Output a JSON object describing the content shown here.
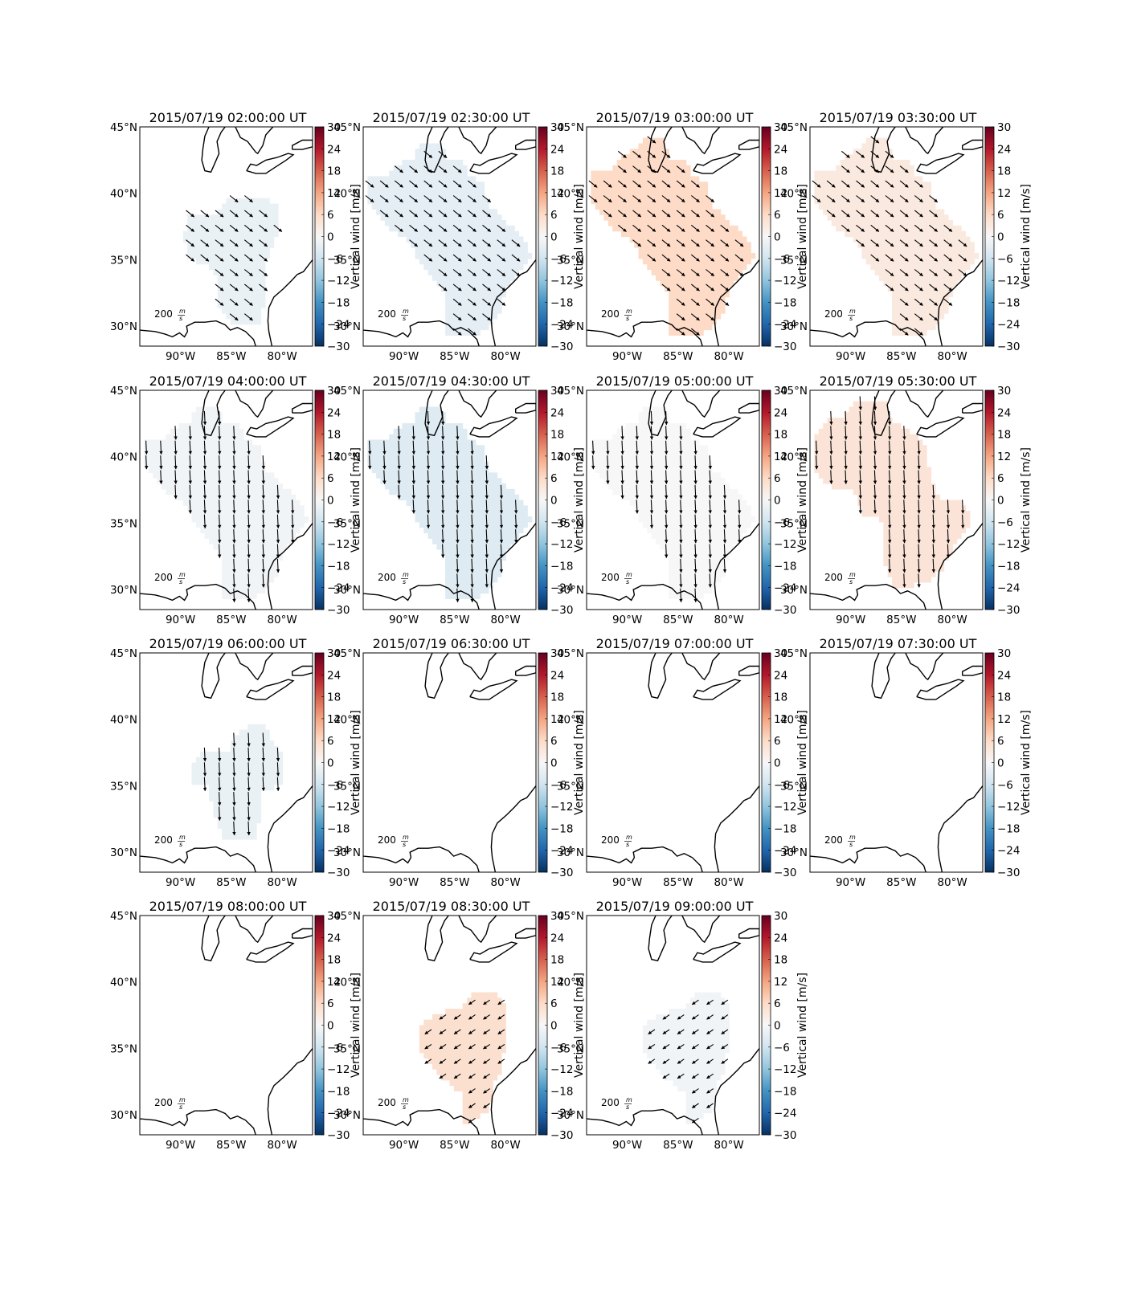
{
  "figure": {
    "colorbar_label": "Vertical wind [m/s]"
  },
  "chart_data": {
    "type": "map",
    "panel_titles": [
      "2015/07/19 02:00:00 UT",
      "2015/07/19 02:30:00 UT",
      "2015/07/19 03:00:00 UT",
      "2015/07/19 03:30:00 UT",
      "2015/07/19 04:00:00 UT",
      "2015/07/19 04:30:00 UT",
      "2015/07/19 05:00:00 UT",
      "2015/07/19 05:30:00 UT",
      "2015/07/19 06:00:00 UT",
      "2015/07/19 06:30:00 UT",
      "2015/07/19 07:00:00 UT",
      "2015/07/19 07:30:00 UT",
      "2015/07/19 08:00:00 UT",
      "2015/07/19 08:30:00 UT",
      "2015/07/19 09:00:00 UT"
    ],
    "lon_ticks": [
      "90°W",
      "85°W",
      "80°W"
    ],
    "lon_values": [
      -90,
      -85,
      -80
    ],
    "lat_ticks": [
      "45°N",
      "40°N",
      "35°N",
      "30°N"
    ],
    "lat_values": [
      45,
      40,
      35,
      30
    ],
    "xlim": [
      -94,
      -77
    ],
    "ylim": [
      28.5,
      45
    ],
    "colorbar": {
      "ticks": [
        "30",
        "24",
        "18",
        "12",
        "6",
        "0",
        "−6",
        "−12",
        "−18",
        "−24",
        "−30"
      ],
      "range": [
        -30,
        30
      ],
      "colormap": "RdBu_r",
      "label": "Vertical wind [m/s]"
    },
    "vector_key": {
      "value": "200",
      "unit_num": "m",
      "unit_den": "s"
    },
    "vertical_wind_estimates_ms": [
      -2,
      -3,
      6,
      3,
      -1,
      -4,
      0,
      4,
      -2,
      null,
      null,
      null,
      null,
      5,
      -1
    ],
    "wind_direction": [
      "SE",
      "SE",
      "SE",
      "SE",
      "S",
      "S",
      "S",
      "S",
      "S",
      null,
      null,
      null,
      null,
      "SW",
      "SW"
    ]
  }
}
